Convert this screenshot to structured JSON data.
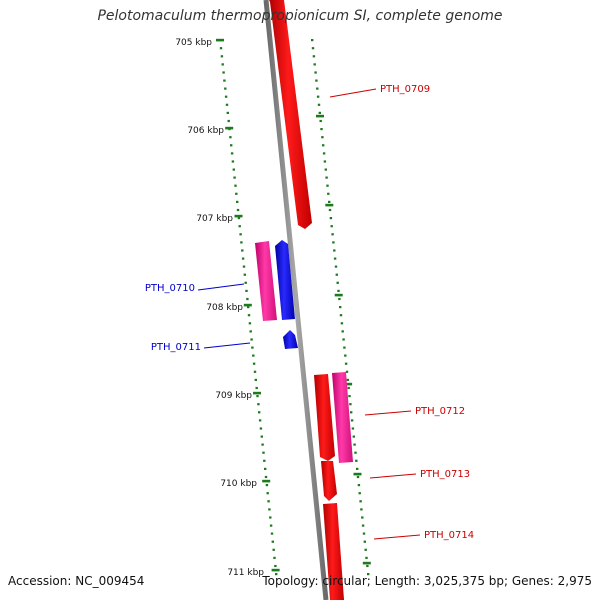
{
  "title": "Pelotomaculum thermopropionicum SI, complete genome",
  "footer": {
    "accession": "Accession: NC_009454",
    "topology": "Topology: circular; Length: 3,025,375 bp; Genes: 2,975"
  },
  "colors": {
    "background": "#ffffff",
    "backbone": "#8c8c8c",
    "tick": "#1e7a1e",
    "gene_forward": "#ff0000",
    "gene_reverse": "#0000ff",
    "gene_magenta": "#ff1493",
    "label_forward": "#cc0000",
    "label_reverse": "#0000cc"
  },
  "scale_labels": [
    "705 kbp",
    "706 kbp",
    "707 kbp",
    "708 kbp",
    "709 kbp",
    "710 kbp",
    "711 kbp"
  ],
  "genes": [
    {
      "id": "PTH_0709",
      "label": "PTH_0709",
      "color": "red"
    },
    {
      "id": "PTH_0710",
      "label": "PTH_0710",
      "color": "blue"
    },
    {
      "id": "PTH_0711",
      "label": "PTH_0711",
      "color": "blue"
    },
    {
      "id": "PTH_0712",
      "label": "PTH_0712",
      "color": "red"
    },
    {
      "id": "PTH_0713",
      "label": "PTH_0713",
      "color": "red"
    },
    {
      "id": "PTH_0714",
      "label": "PTH_0714",
      "color": "red"
    }
  ]
}
